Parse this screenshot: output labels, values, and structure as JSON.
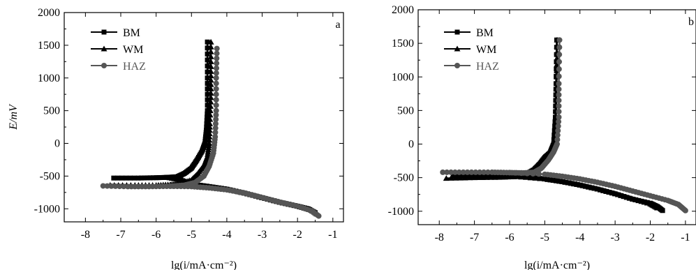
{
  "chart_data": [
    {
      "panel": "a",
      "type": "line",
      "ylabel": "E/mV",
      "xlabel": "lg(i/mA·cm⁻²)",
      "xlim": [
        -8.6,
        -0.7
      ],
      "ylim": [
        -1200,
        2000
      ],
      "xticks": [
        "-8",
        "-7",
        "-6",
        "-5",
        "-4",
        "-3",
        "-2",
        "-1"
      ],
      "yticks": [
        "-1000",
        "-500",
        "0",
        "500",
        "1000",
        "1500",
        "2000"
      ],
      "legend_position": "top-left",
      "series": [
        {
          "name": "BM",
          "marker": "square",
          "color": "#000000",
          "points": [
            [
              -7.2,
              -530
            ],
            [
              -6.5,
              -530
            ],
            [
              -6.0,
              -525
            ],
            [
              -5.7,
              -520
            ],
            [
              -5.4,
              -510
            ],
            [
              -5.2,
              -460
            ],
            [
              -5.0,
              -380
            ],
            [
              -4.85,
              -260
            ],
            [
              -4.7,
              -120
            ],
            [
              -4.62,
              0
            ],
            [
              -4.58,
              200
            ],
            [
              -4.55,
              500
            ],
            [
              -4.55,
              1000
            ],
            [
              -4.55,
              1550
            ]
          ],
          "cathodic": [
            [
              -5.7,
              -520
            ],
            [
              -5.3,
              -560
            ],
            [
              -5.0,
              -620
            ],
            [
              -4.5,
              -660
            ],
            [
              -4.0,
              -700
            ],
            [
              -3.5,
              -760
            ],
            [
              -3.0,
              -830
            ],
            [
              -2.5,
              -900
            ],
            [
              -2.0,
              -960
            ],
            [
              -1.7,
              -1000
            ],
            [
              -1.5,
              -1060
            ]
          ]
        },
        {
          "name": "WM",
          "marker": "triangle",
          "color": "#000000",
          "points": [
            [
              -7.3,
              -640
            ],
            [
              -6.6,
              -640
            ],
            [
              -6.0,
              -640
            ],
            [
              -5.6,
              -630
            ],
            [
              -5.3,
              -610
            ],
            [
              -5.0,
              -560
            ],
            [
              -4.85,
              -480
            ],
            [
              -4.65,
              -340
            ],
            [
              -4.55,
              -200
            ],
            [
              -4.5,
              0
            ],
            [
              -4.48,
              300
            ],
            [
              -4.45,
              700
            ],
            [
              -4.45,
              1100
            ],
            [
              -4.45,
              1550
            ]
          ],
          "cathodic": [
            [
              -5.6,
              -630
            ],
            [
              -5.0,
              -640
            ],
            [
              -4.5,
              -660
            ],
            [
              -4.0,
              -700
            ],
            [
              -3.5,
              -760
            ],
            [
              -3.0,
              -830
            ],
            [
              -2.5,
              -900
            ],
            [
              -2.0,
              -960
            ],
            [
              -1.6,
              -1020
            ],
            [
              -1.45,
              -1080
            ]
          ]
        },
        {
          "name": "HAZ",
          "marker": "circle",
          "color": "#555555",
          "points": [
            [
              -7.5,
              -650
            ],
            [
              -6.8,
              -660
            ],
            [
              -6.2,
              -660
            ],
            [
              -5.6,
              -655
            ],
            [
              -5.2,
              -640
            ],
            [
              -4.9,
              -600
            ],
            [
              -4.65,
              -500
            ],
            [
              -4.5,
              -350
            ],
            [
              -4.38,
              -150
            ],
            [
              -4.33,
              100
            ],
            [
              -4.3,
              500
            ],
            [
              -4.3,
              1000
            ],
            [
              -4.28,
              1450
            ]
          ],
          "cathodic": [
            [
              -5.6,
              -655
            ],
            [
              -5.0,
              -660
            ],
            [
              -4.5,
              -680
            ],
            [
              -4.0,
              -710
            ],
            [
              -3.5,
              -760
            ],
            [
              -3.0,
              -830
            ],
            [
              -2.5,
              -900
            ],
            [
              -2.0,
              -960
            ],
            [
              -1.6,
              -1030
            ],
            [
              -1.4,
              -1110
            ]
          ]
        }
      ]
    },
    {
      "panel": "b",
      "type": "line",
      "ylabel": "",
      "xlabel": "lg(i/mA·cm⁻²)",
      "xlim": [
        -8.6,
        -0.7
      ],
      "ylim": [
        -1200,
        2000
      ],
      "xticks": [
        "-8",
        "-7",
        "-6",
        "-5",
        "-4",
        "-3",
        "-2",
        "-1"
      ],
      "yticks": [
        "-1000",
        "-500",
        "0",
        "500",
        "1000",
        "1500",
        "2000"
      ],
      "legend_position": "top-left",
      "series": [
        {
          "name": "BM",
          "marker": "square",
          "color": "#000000",
          "points": [
            [
              -7.6,
              -480
            ],
            [
              -7.0,
              -480
            ],
            [
              -6.3,
              -478
            ],
            [
              -5.8,
              -470
            ],
            [
              -5.5,
              -440
            ],
            [
              -5.3,
              -380
            ],
            [
              -5.15,
              -300
            ],
            [
              -5.0,
              -200
            ],
            [
              -4.85,
              -130
            ],
            [
              -4.75,
              0
            ],
            [
              -4.7,
              400
            ],
            [
              -4.68,
              900
            ],
            [
              -4.66,
              1550
            ]
          ],
          "cathodic": [
            [
              -5.8,
              -470
            ],
            [
              -5.0,
              -520
            ],
            [
              -4.5,
              -560
            ],
            [
              -4.0,
              -610
            ],
            [
              -3.5,
              -670
            ],
            [
              -3.0,
              -740
            ],
            [
              -2.5,
              -820
            ],
            [
              -2.0,
              -880
            ],
            [
              -1.8,
              -930
            ],
            [
              -1.65,
              -990
            ]
          ]
        },
        {
          "name": "WM",
          "marker": "triangle",
          "color": "#000000",
          "points": [
            [
              -7.8,
              -510
            ],
            [
              -7.0,
              -500
            ],
            [
              -6.3,
              -495
            ],
            [
              -5.8,
              -485
            ],
            [
              -5.5,
              -460
            ],
            [
              -5.3,
              -420
            ],
            [
              -5.1,
              -340
            ],
            [
              -4.95,
              -230
            ],
            [
              -4.8,
              -100
            ],
            [
              -4.72,
              0
            ],
            [
              -4.68,
              500
            ],
            [
              -4.66,
              1000
            ],
            [
              -4.65,
              1550
            ]
          ],
          "cathodic": [
            [
              -5.8,
              -485
            ],
            [
              -5.0,
              -520
            ],
            [
              -4.5,
              -560
            ],
            [
              -4.0,
              -610
            ],
            [
              -3.5,
              -670
            ],
            [
              -3.0,
              -740
            ],
            [
              -2.5,
              -820
            ],
            [
              -2.0,
              -890
            ],
            [
              -1.8,
              -950
            ]
          ]
        },
        {
          "name": "HAZ",
          "marker": "circle",
          "color": "#555555",
          "points": [
            [
              -7.9,
              -420
            ],
            [
              -7.2,
              -420
            ],
            [
              -6.5,
              -420
            ],
            [
              -6.0,
              -425
            ],
            [
              -5.6,
              -430
            ],
            [
              -5.3,
              -420
            ],
            [
              -5.1,
              -360
            ],
            [
              -4.9,
              -240
            ],
            [
              -4.75,
              -120
            ],
            [
              -4.65,
              0
            ],
            [
              -4.6,
              400
            ],
            [
              -4.6,
              900
            ],
            [
              -4.58,
              1550
            ]
          ],
          "cathodic": [
            [
              -6.0,
              -425
            ],
            [
              -5.0,
              -450
            ],
            [
              -4.5,
              -480
            ],
            [
              -4.0,
              -520
            ],
            [
              -3.5,
              -570
            ],
            [
              -3.0,
              -630
            ],
            [
              -2.5,
              -700
            ],
            [
              -2.0,
              -770
            ],
            [
              -1.5,
              -840
            ],
            [
              -1.2,
              -900
            ],
            [
              -1.0,
              -990
            ]
          ]
        }
      ]
    }
  ]
}
